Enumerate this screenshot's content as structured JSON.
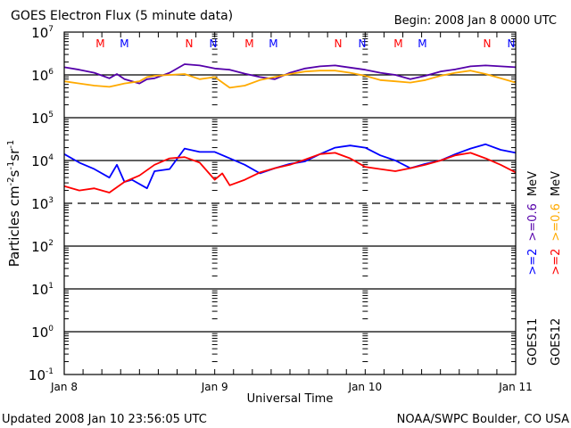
{
  "chart_data": {
    "type": "line",
    "title": "GOES Electron Flux (5 minute data)",
    "begin_label": "Begin: 2008 Jan 8 0000 UTC",
    "xlabel": "Universal Time",
    "ylabel_parts": [
      "Particles cm",
      "-2",
      "s",
      "-1",
      "sr",
      "-1"
    ],
    "footer_left": "Updated 2008 Jan 10 23:56:05 UTC",
    "footer_right": "NOAA/SWPC Boulder, CO USA",
    "x_unit": "days since 2008 Jan 8 0000 UTC",
    "xlim": [
      0,
      3
    ],
    "ylim_log10": [
      -1,
      7
    ],
    "x_ticks": [
      {
        "value": 0,
        "label": "Jan 8"
      },
      {
        "value": 1,
        "label": "Jan 9"
      },
      {
        "value": 2,
        "label": "Jan 10"
      },
      {
        "value": 3,
        "label": "Jan 11"
      }
    ],
    "y_ticks": [
      {
        "exp": 7,
        "base": "10",
        "sup": "7"
      },
      {
        "exp": 6,
        "base": "10",
        "sup": "6"
      },
      {
        "exp": 5,
        "base": "10",
        "sup": "5"
      },
      {
        "exp": 4,
        "base": "10",
        "sup": "4"
      },
      {
        "exp": 3,
        "base": "10",
        "sup": "3"
      },
      {
        "exp": 2,
        "base": "10",
        "sup": "2"
      },
      {
        "exp": 1,
        "base": "10",
        "sup": "1"
      },
      {
        "exp": 0,
        "base": "10",
        "sup": "0"
      },
      {
        "exp": -1,
        "base": "10",
        "sup": "-1"
      }
    ],
    "threshold_line": {
      "value_log10": 3,
      "style": "dashed"
    },
    "grid_solid_log10": [
      6,
      5,
      4,
      2,
      1,
      0
    ],
    "midnight_markers": [
      {
        "x": 0.24,
        "label": "M",
        "color": "#ff0000"
      },
      {
        "x": 0.4,
        "label": "M",
        "color": "#0000ff"
      },
      {
        "x": 0.83,
        "label": "N",
        "color": "#ff0000"
      },
      {
        "x": 0.99,
        "label": "N",
        "color": "#0000ff"
      },
      {
        "x": 1.23,
        "label": "M",
        "color": "#ff0000"
      },
      {
        "x": 1.39,
        "label": "M",
        "color": "#0000ff"
      },
      {
        "x": 1.82,
        "label": "N",
        "color": "#ff0000"
      },
      {
        "x": 1.98,
        "label": "N",
        "color": "#0000ff"
      },
      {
        "x": 2.22,
        "label": "M",
        "color": "#ff0000"
      },
      {
        "x": 2.38,
        "label": "M",
        "color": "#0000ff"
      },
      {
        "x": 2.81,
        "label": "N",
        "color": "#ff0000"
      },
      {
        "x": 2.97,
        "label": "N",
        "color": "#0000ff"
      }
    ],
    "legend": [
      {
        "satellite": "GOES11",
        "lines": [
          {
            "text": ">=2",
            "color": "#0000ff"
          },
          {
            "text": ">=0.6",
            "color": "#5500aa"
          },
          {
            "text": "MeV",
            "color": "#000000"
          }
        ]
      },
      {
        "satellite": "GOES12",
        "lines": [
          {
            "text": ">=2",
            "color": "#ff0000"
          },
          {
            "text": ">=0.6",
            "color": "#ffaa00"
          },
          {
            "text": "MeV",
            "color": "#000000"
          }
        ]
      }
    ],
    "legend_placement": "right, rotated vertical",
    "series": [
      {
        "name": "GOES11 >=0.6 MeV",
        "color": "#5500aa",
        "x": [
          0,
          0.1,
          0.2,
          0.3,
          0.35,
          0.4,
          0.5,
          0.55,
          0.6,
          0.7,
          0.8,
          0.9,
          1.0,
          1.1,
          1.2,
          1.3,
          1.4,
          1.5,
          1.6,
          1.7,
          1.8,
          1.9,
          2.0,
          2.1,
          2.2,
          2.3,
          2.4,
          2.5,
          2.6,
          2.7,
          2.8,
          2.9,
          3.0
        ],
        "log10": [
          6.18,
          6.12,
          6.05,
          5.92,
          6.02,
          5.9,
          5.8,
          5.9,
          5.92,
          6.05,
          6.25,
          6.22,
          6.15,
          6.12,
          6.03,
          5.95,
          5.9,
          6.05,
          6.15,
          6.2,
          6.22,
          6.17,
          6.12,
          6.05,
          6.0,
          5.9,
          5.98,
          6.08,
          6.13,
          6.2,
          6.22,
          6.2,
          6.18
        ]
      },
      {
        "name": "GOES12 >=0.6 MeV",
        "color": "#ffaa00",
        "x": [
          0,
          0.1,
          0.2,
          0.3,
          0.4,
          0.5,
          0.55,
          0.6,
          0.7,
          0.8,
          0.9,
          1.0,
          1.1,
          1.2,
          1.3,
          1.4,
          1.5,
          1.6,
          1.7,
          1.8,
          1.9,
          2.0,
          2.1,
          2.2,
          2.3,
          2.4,
          2.5,
          2.6,
          2.7,
          2.8,
          2.9,
          3.0
        ],
        "log10": [
          5.85,
          5.8,
          5.75,
          5.72,
          5.8,
          5.85,
          5.95,
          5.98,
          6.0,
          6.02,
          5.9,
          5.95,
          5.7,
          5.75,
          5.88,
          5.95,
          6.02,
          6.08,
          6.1,
          6.1,
          6.05,
          5.98,
          5.88,
          5.85,
          5.82,
          5.88,
          5.98,
          6.05,
          6.1,
          6.02,
          5.92,
          5.82
        ]
      },
      {
        "name": "GOES11 >=2 MeV",
        "color": "#0000ff",
        "x": [
          0,
          0.1,
          0.2,
          0.3,
          0.35,
          0.4,
          0.45,
          0.55,
          0.6,
          0.7,
          0.8,
          0.9,
          1.0,
          1.1,
          1.2,
          1.3,
          1.4,
          1.5,
          1.6,
          1.7,
          1.8,
          1.9,
          2.0,
          2.1,
          2.2,
          2.3,
          2.4,
          2.5,
          2.6,
          2.7,
          2.8,
          2.9,
          3.0
        ],
        "log10": [
          4.15,
          3.95,
          3.8,
          3.6,
          3.9,
          3.5,
          3.55,
          3.35,
          3.75,
          3.8,
          4.28,
          4.2,
          4.2,
          4.05,
          3.9,
          3.7,
          3.82,
          3.92,
          3.98,
          4.15,
          4.3,
          4.35,
          4.3,
          4.12,
          4.0,
          3.82,
          3.92,
          4.0,
          4.15,
          4.28,
          4.38,
          4.25,
          4.18
        ]
      },
      {
        "name": "GOES12 >=2 MeV",
        "color": "#ff0000",
        "x": [
          0,
          0.1,
          0.2,
          0.3,
          0.4,
          0.5,
          0.6,
          0.7,
          0.8,
          0.9,
          1.0,
          1.05,
          1.1,
          1.2,
          1.3,
          1.4,
          1.5,
          1.6,
          1.7,
          1.8,
          1.9,
          2.0,
          2.1,
          2.2,
          2.3,
          2.4,
          2.5,
          2.6,
          2.7,
          2.8,
          2.9,
          3.0
        ],
        "log10": [
          3.4,
          3.3,
          3.35,
          3.25,
          3.5,
          3.65,
          3.9,
          4.05,
          4.08,
          3.95,
          3.55,
          3.7,
          3.42,
          3.55,
          3.72,
          3.82,
          3.9,
          4.02,
          4.15,
          4.18,
          4.05,
          3.85,
          3.8,
          3.75,
          3.82,
          3.9,
          4.0,
          4.12,
          4.18,
          4.05,
          3.9,
          3.72
        ]
      }
    ]
  }
}
